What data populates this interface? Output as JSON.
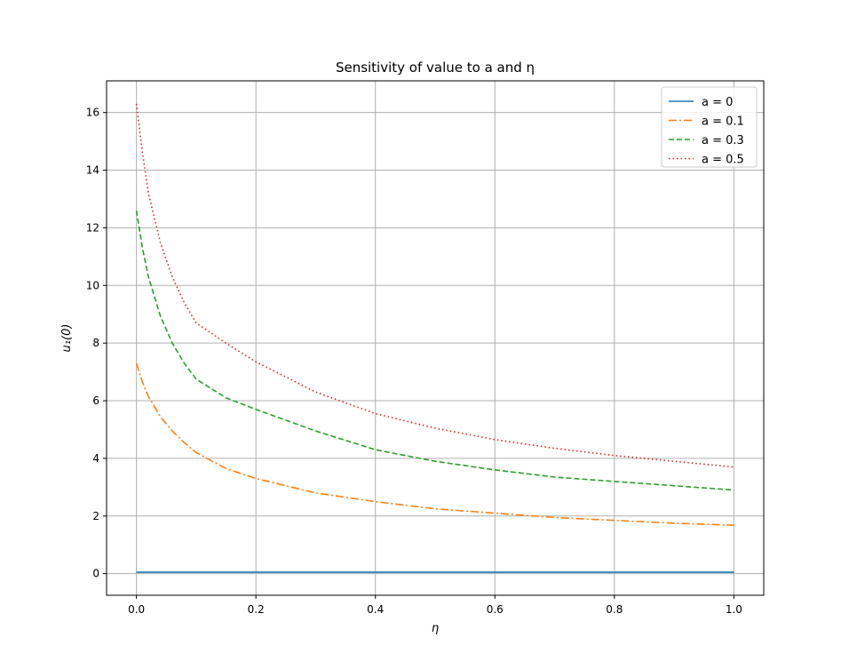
{
  "chart_data": {
    "type": "line",
    "title": "Sensitivity of value to a and η",
    "xlabel": "η",
    "ylabel": "u₁(0)",
    "xlim": [
      -0.05,
      1.05
    ],
    "ylim": [
      -0.75,
      17.1
    ],
    "xticks": [
      "0.0",
      "0.2",
      "0.4",
      "0.6",
      "0.8",
      "1.0"
    ],
    "yticks": [
      "0",
      "2",
      "4",
      "6",
      "8",
      "10",
      "12",
      "14",
      "16"
    ],
    "grid": true,
    "legend_position": "top-right",
    "x": [
      0.0,
      0.01,
      0.02,
      0.04,
      0.06,
      0.08,
      0.1,
      0.15,
      0.2,
      0.3,
      0.4,
      0.5,
      0.6,
      0.7,
      0.8,
      0.9,
      1.0
    ],
    "series": [
      {
        "name": "a = 0",
        "color": "#1f77b4",
        "linestyle": "solid",
        "values": [
          0.05,
          0.05,
          0.05,
          0.05,
          0.05,
          0.05,
          0.05,
          0.05,
          0.05,
          0.05,
          0.05,
          0.05,
          0.05,
          0.05,
          0.05,
          0.05,
          0.05
        ]
      },
      {
        "name": "a = 0.1",
        "color": "#ff7f0e",
        "linestyle": "dashdot",
        "values": [
          7.3,
          6.65,
          6.15,
          5.45,
          4.95,
          4.55,
          4.2,
          3.65,
          3.3,
          2.8,
          2.5,
          2.25,
          2.1,
          1.95,
          1.85,
          1.75,
          1.68
        ]
      },
      {
        "name": "a = 0.3",
        "color": "#2ca02c",
        "linestyle": "dashed",
        "values": [
          12.6,
          11.3,
          10.3,
          8.95,
          8.0,
          7.3,
          6.75,
          6.1,
          5.7,
          4.95,
          4.3,
          3.9,
          3.6,
          3.35,
          3.2,
          3.05,
          2.9
        ]
      },
      {
        "name": "a = 0.5",
        "color": "#d62728",
        "linestyle": "dotted",
        "values": [
          16.3,
          14.6,
          13.2,
          11.5,
          10.3,
          9.4,
          8.7,
          8.0,
          7.35,
          6.3,
          5.55,
          5.05,
          4.65,
          4.35,
          4.1,
          3.9,
          3.7
        ]
      }
    ]
  }
}
